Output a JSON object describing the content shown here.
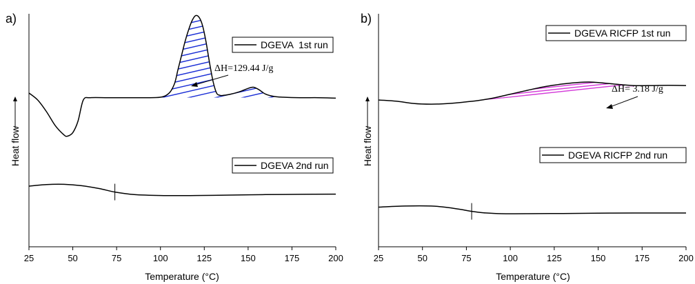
{
  "panels": [
    {
      "panel_label": "a)",
      "xlabel": "Temperature (°C)",
      "ylabel": "Heat flow",
      "xticks": [
        "25",
        "50",
        "75",
        "100",
        "125",
        "150",
        "175",
        "200"
      ],
      "legend_1st": "DGEVA  1st run",
      "legend_2nd": "DGEVA 2nd run",
      "annotation": "ΔH=129.44 J/g",
      "hatch_color": "#1a2ed6"
    },
    {
      "panel_label": "b)",
      "xlabel": "Temperature (°C)",
      "ylabel": "Heat flow",
      "xticks": [
        "25",
        "50",
        "75",
        "100",
        "125",
        "150",
        "175",
        "200"
      ],
      "legend_1st": "DGEVA RICFP 1st run",
      "legend_2nd": "DGEVA RICFP 2nd run",
      "annotation": "ΔH= 3.18 J/g",
      "hatch_color": "#d43bd9"
    }
  ],
  "chart_data": [
    {
      "type": "line",
      "panel": "a)",
      "xlabel": "Temperature (°C)",
      "ylabel": "Heat flow",
      "xlim": [
        25,
        200
      ],
      "ylim": [
        0,
        10
      ],
      "y_axis_ticks_shown": false,
      "series": [
        {
          "name": "DGEVA  1st run",
          "x": [
            25,
            30,
            35,
            40,
            45,
            47,
            50,
            53,
            56,
            60,
            70,
            80,
            90,
            100,
            105,
            108,
            110,
            112,
            114,
            116,
            118,
            120,
            122,
            124,
            126,
            128,
            130,
            132,
            134,
            136,
            140,
            145,
            150,
            153,
            156,
            160,
            165,
            170,
            180,
            190,
            200
          ],
          "y": [
            6.6,
            6.3,
            5.8,
            5.2,
            4.8,
            4.75,
            4.9,
            5.4,
            6.3,
            6.4,
            6.4,
            6.4,
            6.4,
            6.42,
            6.6,
            7.0,
            7.6,
            8.2,
            8.8,
            9.3,
            9.7,
            9.92,
            9.85,
            9.5,
            8.8,
            7.9,
            7.1,
            6.6,
            6.5,
            6.5,
            6.55,
            6.65,
            6.8,
            6.85,
            6.75,
            6.55,
            6.45,
            6.42,
            6.4,
            6.4,
            6.38
          ]
        },
        {
          "name": "DGEVA 2nd run",
          "x": [
            25,
            35,
            45,
            55,
            65,
            74,
            85,
            100,
            120,
            140,
            160,
            180,
            200
          ],
          "y": [
            2.6,
            2.67,
            2.68,
            2.62,
            2.5,
            2.35,
            2.24,
            2.2,
            2.2,
            2.22,
            2.24,
            2.25,
            2.26
          ]
        }
      ],
      "annotations": [
        {
          "text": "ΔH=129.44 J/g",
          "x": 135,
          "y": 8.8
        },
        {
          "text": "glass transition marker",
          "x": 74,
          "y": 2.35
        }
      ]
    },
    {
      "type": "line",
      "panel": "b)",
      "xlabel": "Temperature (°C)",
      "ylabel": "Heat flow",
      "xlim": [
        25,
        200
      ],
      "ylim": [
        0,
        10
      ],
      "y_axis_ticks_shown": false,
      "series": [
        {
          "name": "DGEVA RICFP 1st run",
          "x": [
            25,
            35,
            45,
            55,
            65,
            75,
            82,
            90,
            100,
            110,
            120,
            130,
            140,
            145,
            150,
            160,
            170,
            180,
            190,
            200
          ],
          "y": [
            6.3,
            6.25,
            6.15,
            6.12,
            6.15,
            6.22,
            6.28,
            6.38,
            6.55,
            6.72,
            6.88,
            6.99,
            7.06,
            7.07,
            7.05,
            6.98,
            6.92,
            6.92,
            6.93,
            6.92
          ]
        },
        {
          "name": "DGEVA RICFP 2nd run",
          "x": [
            25,
            40,
            55,
            65,
            72,
            78,
            85,
            95,
            110,
            130,
            150,
            170,
            200
          ],
          "y": [
            1.7,
            1.75,
            1.75,
            1.68,
            1.6,
            1.52,
            1.46,
            1.42,
            1.42,
            1.43,
            1.44,
            1.45,
            1.45
          ]
        }
      ],
      "annotations": [
        {
          "text": "ΔH= 3.18 J/g",
          "x": 163,
          "y": 7.5
        },
        {
          "text": "glass transition marker",
          "x": 78,
          "y": 1.52
        }
      ]
    }
  ]
}
